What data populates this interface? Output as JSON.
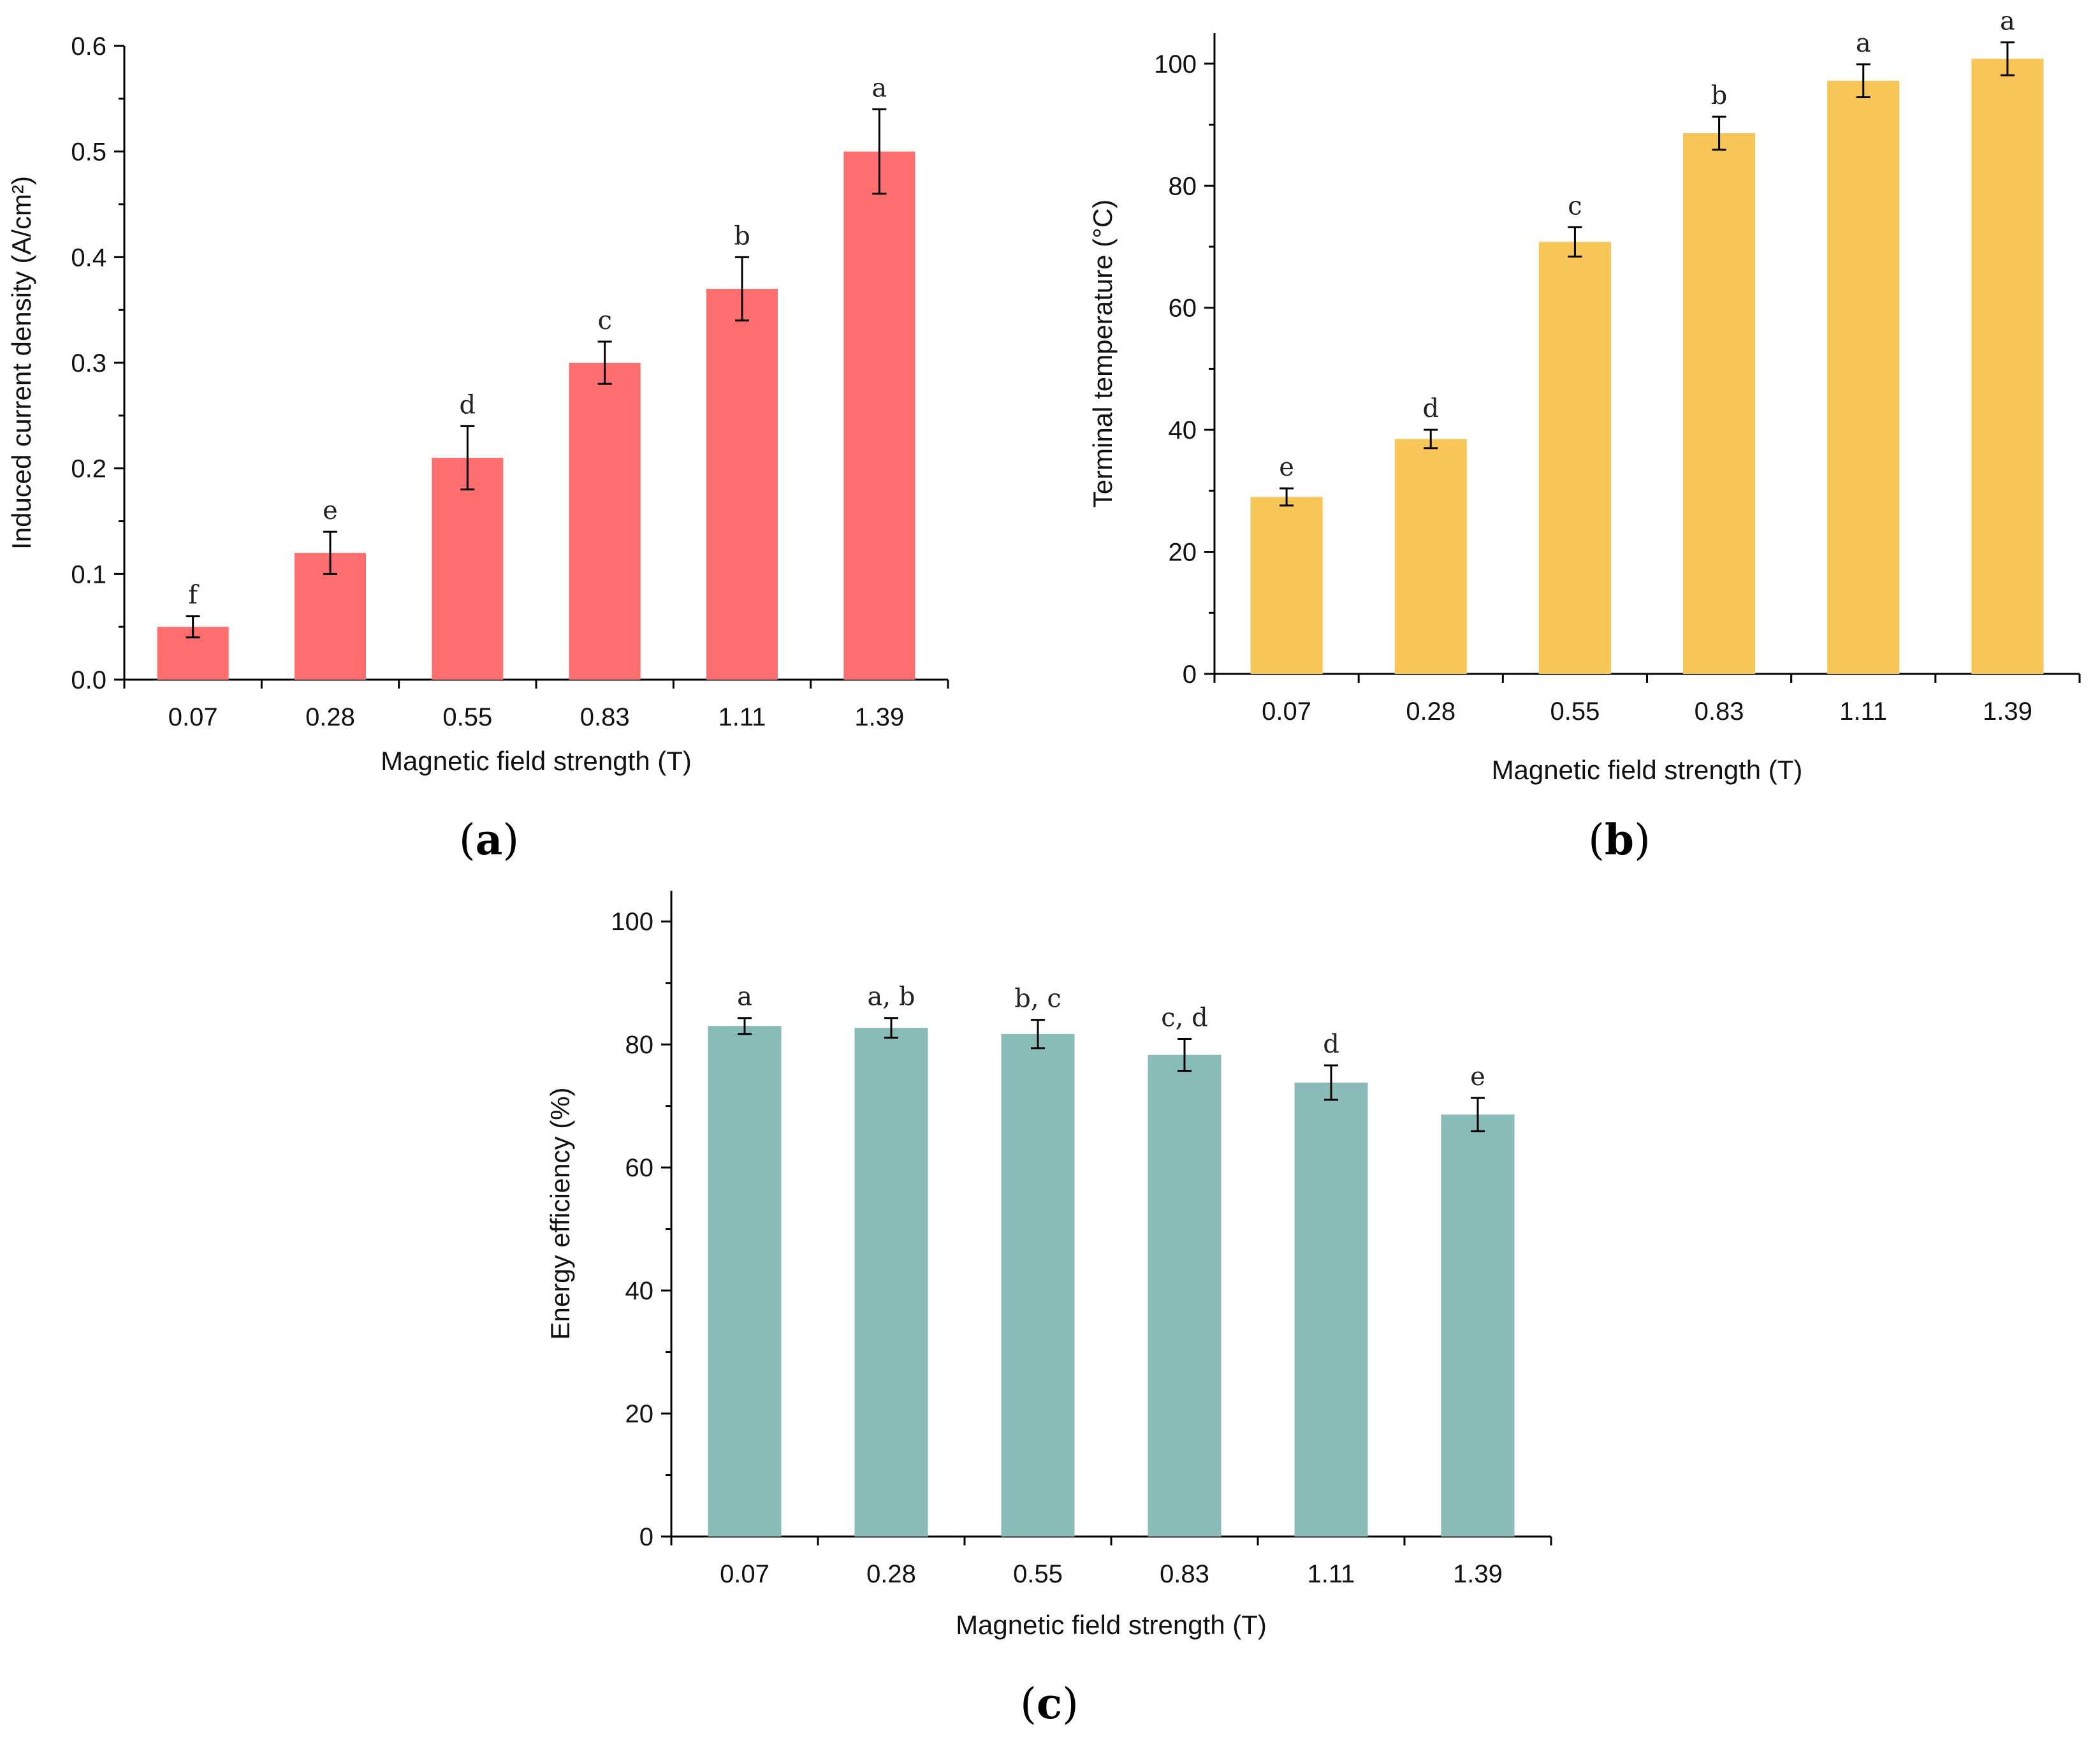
{
  "chart_data": [
    {
      "type": "bar",
      "panel": "(a)",
      "categories": [
        "0.07",
        "0.28",
        "0.55",
        "0.83",
        "1.11",
        "1.39"
      ],
      "values": [
        0.05,
        0.12,
        0.21,
        0.3,
        0.37,
        0.5
      ],
      "errors": [
        0.01,
        0.02,
        0.03,
        0.02,
        0.03,
        0.04
      ],
      "significance": [
        "f",
        "e",
        "d",
        "c",
        "b",
        "a"
      ],
      "xlabel": "Magnetic field strength (T)",
      "ylabel": "Induced current density (A/cm²)",
      "ylim": [
        0,
        0.6
      ],
      "yticks": [
        "0.0",
        "0.1",
        "0.2",
        "0.3",
        "0.4",
        "0.5",
        "0.6"
      ],
      "bar_color": "#ff6e6e",
      "grid": false
    },
    {
      "type": "bar",
      "panel": "(b)",
      "categories": [
        "0.07",
        "0.28",
        "0.55",
        "0.83",
        "1.11",
        "1.39"
      ],
      "values": [
        29,
        38.5,
        70.8,
        88.6,
        97.2,
        100.8
      ],
      "errors": [
        1.4,
        1.5,
        2.4,
        2.7,
        2.7,
        2.7
      ],
      "significance": [
        "e",
        "d",
        "c",
        "b",
        "a",
        "a"
      ],
      "xlabel": "Magnetic field strength (T)",
      "ylabel": "Terminal temperature (°C)",
      "ylim": [
        0,
        105
      ],
      "yticks": [
        "0",
        "20",
        "40",
        "60",
        "80",
        "100"
      ],
      "bar_color": "#f8c558",
      "grid": false
    },
    {
      "type": "bar",
      "panel": "(c)",
      "categories": [
        "0.07",
        "0.28",
        "0.55",
        "0.83",
        "1.11",
        "1.39"
      ],
      "values": [
        83,
        82.7,
        81.7,
        78.3,
        73.8,
        68.6
      ],
      "errors": [
        1.3,
        1.6,
        2.3,
        2.6,
        2.8,
        2.7
      ],
      "significance": [
        "a",
        "a, b",
        "b, c",
        "c, d",
        "d",
        "e"
      ],
      "xlabel": "Magnetic field strength (T)",
      "ylabel": "Energy efficiency (%)",
      "ylim": [
        0,
        105
      ],
      "yticks": [
        "0",
        "20",
        "40",
        "60",
        "80",
        "100"
      ],
      "bar_color": "#89bbb8",
      "grid": false
    }
  ]
}
